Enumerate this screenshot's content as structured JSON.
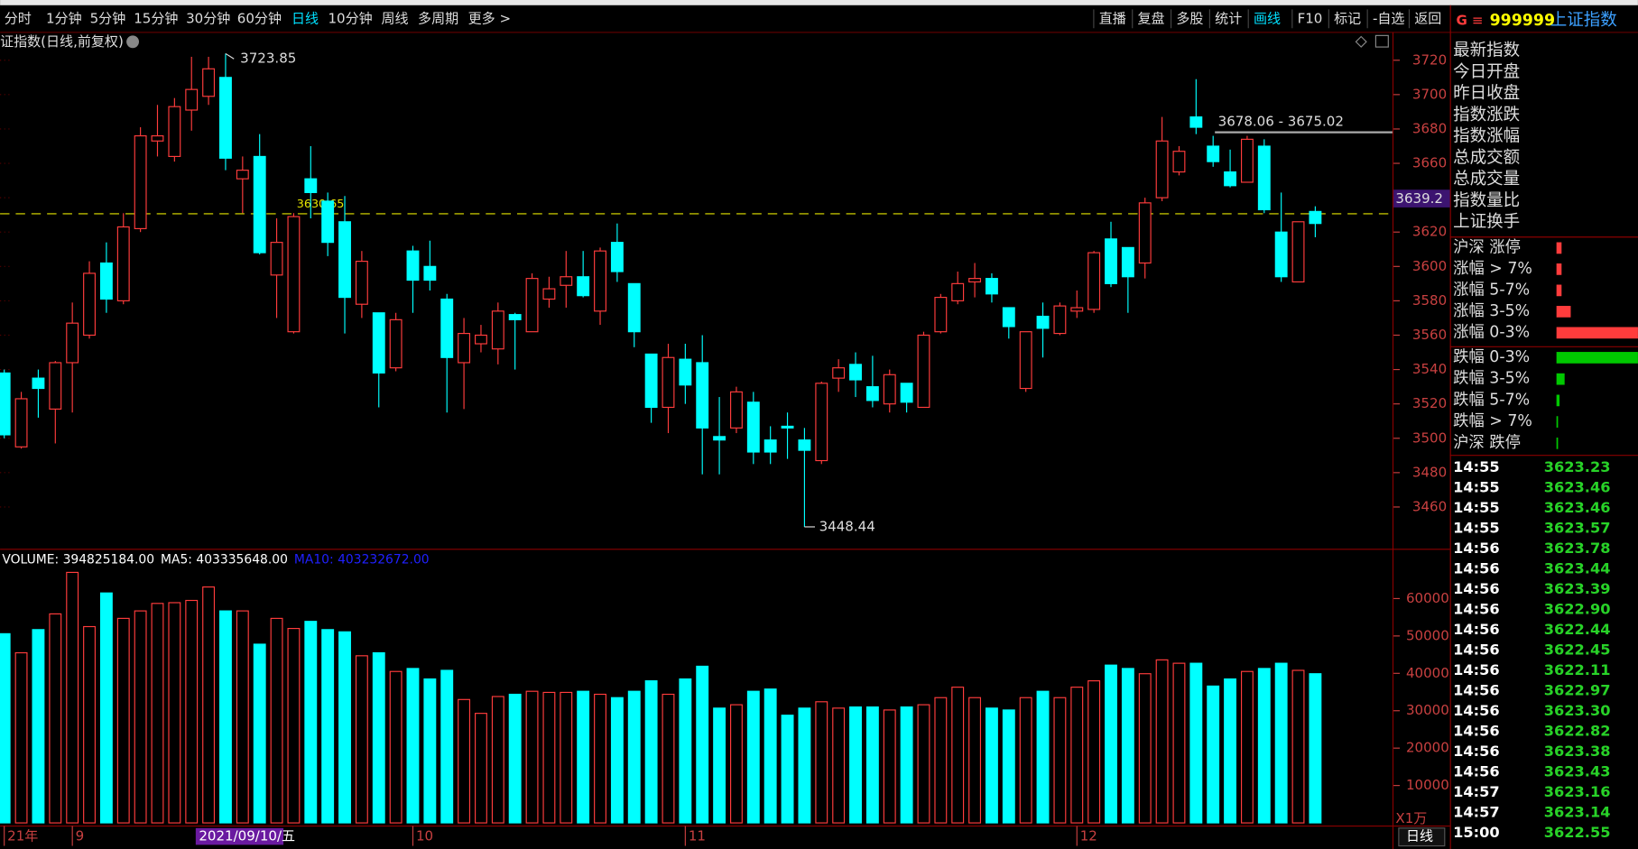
{
  "toolbar": {
    "periods": [
      "分时",
      "1分钟",
      "5分钟",
      "15分钟",
      "30分钟",
      "60分钟",
      "日线",
      "10分钟",
      "周线",
      "多周期",
      "更多 >"
    ],
    "active_period": 6,
    "tools": [
      "直播",
      "复盘",
      "多股",
      "统计",
      "画线",
      "F10",
      "标记",
      "-自选",
      "返回"
    ],
    "active_tool": 4
  },
  "chart_data": [
    {
      "type": "candlestick",
      "title": "证指数(日线,前复权)",
      "categories": [
        "21年",
        null,
        null,
        null,
        "9",
        null,
        null,
        null,
        null,
        null,
        null,
        "2021/09/10/五",
        null,
        null,
        null,
        null,
        null,
        null,
        null,
        null,
        null,
        null,
        null,
        null,
        "10",
        null,
        null,
        null,
        null,
        null,
        null,
        null,
        null,
        null,
        null,
        null,
        null,
        null,
        null,
        null,
        "11",
        null,
        null,
        null,
        null,
        null,
        null,
        null,
        null,
        null,
        null,
        null,
        null,
        null,
        null,
        null,
        null,
        null,
        null,
        null,
        null,
        null,
        null,
        "12",
        null,
        null,
        null,
        null,
        null,
        null,
        null,
        null,
        null,
        null,
        null,
        null,
        null,
        null
      ],
      "open": [
        3538,
        3495,
        3535,
        3517,
        3544,
        3560,
        3602,
        3580,
        3622,
        3673,
        3664,
        3691,
        3699,
        3710,
        3651,
        3664,
        3595,
        3562,
        3651,
        3638,
        3626,
        3578,
        3573,
        3541,
        3609,
        3600,
        3581,
        3544,
        3555,
        3552,
        3572,
        3562,
        3581,
        3589,
        3594,
        3574,
        3614,
        3590,
        3549,
        3518,
        3546,
        3544,
        3501,
        3506,
        3521,
        3499,
        3507,
        3499,
        3487,
        3535,
        3543,
        3530,
        3520,
        3532,
        3518,
        3562,
        3580,
        3591,
        3593,
        3576,
        3529,
        3571,
        3561,
        3574,
        3575,
        3616,
        3611,
        3602,
        3640,
        3655,
        3687,
        3670,
        3655,
        3649,
        3670,
        3620,
        3591,
        3632
      ],
      "high": [
        3540,
        3527,
        3540,
        3545,
        3579,
        3603,
        3614,
        3631,
        3681,
        3694,
        3698,
        3722,
        3722,
        3723.85,
        3664,
        3677,
        3628,
        3631,
        3670,
        3643,
        3641,
        3609,
        3573,
        3573,
        3612,
        3615,
        3584,
        3570,
        3566,
        3579,
        3573,
        3596,
        3594,
        3609,
        3609,
        3611,
        3625,
        3590,
        3549,
        3555,
        3555,
        3560,
        3524,
        3530,
        3527,
        3507,
        3515,
        3506,
        3533,
        3546,
        3550,
        3548,
        3540,
        3532,
        3562,
        3584,
        3597,
        3602,
        3596,
        3576,
        3562,
        3579,
        3579,
        3586,
        3609,
        3626,
        3611,
        3640,
        3687,
        3670,
        3709,
        3676,
        3668,
        3676,
        3674,
        3643,
        3626,
        3635
      ],
      "low": [
        3500,
        3494,
        3512,
        3497,
        3515,
        3558,
        3573,
        3578,
        3620,
        3664,
        3661,
        3679,
        3694,
        3656,
        3631,
        3607,
        3570,
        3561,
        3628,
        3606,
        3561,
        3570,
        3518,
        3539,
        3573,
        3586,
        3515,
        3517,
        3550,
        3543,
        3540,
        3562,
        3576,
        3576,
        3582,
        3566,
        3591,
        3553,
        3509,
        3503,
        3520,
        3479,
        3479,
        3503,
        3485,
        3485,
        3488,
        3448.44,
        3485,
        3527,
        3524,
        3518,
        3515,
        3515,
        3518,
        3561,
        3578,
        3582,
        3579,
        3558,
        3527,
        3547,
        3560,
        3570,
        3573,
        3588,
        3573,
        3593,
        3638,
        3653,
        3677,
        3658,
        3646,
        3649,
        3631,
        3591,
        3591,
        3617
      ],
      "close": [
        3502,
        3523,
        3529,
        3544,
        3567,
        3596,
        3581,
        3623,
        3676,
        3676,
        3693,
        3703,
        3715,
        3663,
        3656,
        3608,
        3614,
        3629,
        3643,
        3614,
        3582,
        3603,
        3538,
        3569,
        3592,
        3592,
        3547,
        3561,
        3560,
        3574,
        3569,
        3593,
        3587,
        3594,
        3583,
        3609,
        3597,
        3562,
        3518,
        3547,
        3531,
        3506,
        3499,
        3527,
        3492,
        3492,
        3506,
        3493,
        3532,
        3541,
        3534,
        3522,
        3537,
        3521,
        3560,
        3582,
        3590,
        3593,
        3584,
        3565,
        3562,
        3564,
        3577,
        3576,
        3608,
        3590,
        3594,
        3637,
        3673,
        3667,
        3681,
        3661,
        3647,
        3674,
        3633,
        3594,
        3626,
        3625
      ],
      "up_color": "#ff3c3c",
      "down_color": "#00ffff",
      "ylim": [
        3436,
        3735
      ],
      "yticks": [
        3460,
        3480,
        3500,
        3520,
        3540,
        3560,
        3580,
        3600,
        3620,
        3640,
        3660,
        3680,
        3700,
        3720
      ],
      "reference_line": 3630.65,
      "reference_color": "#e6e600",
      "range_line": {
        "label": "3678.06 - 3675.02",
        "value": 3678.06
      },
      "cursor_price": 3639.2
    },
    {
      "type": "bar",
      "legend": [
        {
          "text": "VOLUME: 394825184.00",
          "color": "#ffffff"
        },
        {
          "text": "MA5: 403335648.00",
          "color": "#ffffff"
        },
        {
          "text": "MA10: 403232672.00",
          "color": "#2020ff"
        }
      ],
      "values": [
        50600,
        45500,
        51700,
        55900,
        67000,
        52500,
        61500,
        54700,
        56700,
        58700,
        58900,
        59500,
        63100,
        56700,
        56700,
        47800,
        54700,
        52000,
        53900,
        51700,
        51100,
        44700,
        45500,
        40500,
        41300,
        38500,
        40800,
        33000,
        29300,
        33800,
        34400,
        35200,
        34900,
        34900,
        35200,
        34400,
        33500,
        35200,
        38000,
        34400,
        38500,
        41900,
        30700,
        31600,
        35200,
        35800,
        28800,
        30700,
        32400,
        30700,
        31000,
        31000,
        30200,
        31000,
        31600,
        33500,
        36300,
        33500,
        30700,
        30200,
        33500,
        35200,
        33500,
        36300,
        38000,
        42200,
        41300,
        39900,
        43600,
        42700,
        42700,
        36600,
        38500,
        40500,
        41300,
        42700,
        40800,
        39900
      ],
      "ylim": [
        0,
        72900
      ],
      "yticks": [
        10000,
        20000,
        30000,
        40000,
        50000,
        60000
      ],
      "unit": "X1万",
      "period_label": "日线"
    }
  ],
  "quote": {
    "prefix": "G",
    "menu": "≡",
    "code": "999999",
    "name": "上证指数",
    "fields": [
      "最新指数",
      "今日开盘",
      "昨日收盘",
      "指数涨跌",
      "指数涨幅",
      "总成交额",
      "总成交量",
      "指数量比",
      "上证换手"
    ],
    "breadth": [
      {
        "label": "沪深 涨停",
        "value": 5,
        "color": "#ff3c3c"
      },
      {
        "label": "涨幅 > 7%",
        "value": 5,
        "color": "#ff3c3c"
      },
      {
        "label": "涨幅 5-7%",
        "value": 5,
        "color": "#ff3c3c"
      },
      {
        "label": "涨幅 3-5%",
        "value": 14,
        "color": "#ff3c3c"
      },
      {
        "label": "涨幅 0-3%",
        "value": 80,
        "color": "#ff3c3c"
      },
      {
        "label": "跌幅 0-3%",
        "value": 80,
        "color": "#00c800"
      },
      {
        "label": "跌幅 3-5%",
        "value": 8,
        "color": "#00c800"
      },
      {
        "label": "跌幅 5-7%",
        "value": 3,
        "color": "#00c800"
      },
      {
        "label": "跌幅 > 7%",
        "value": 1,
        "color": "#00c800"
      },
      {
        "label": "沪深 跌停",
        "value": 1,
        "color": "#00c800"
      }
    ],
    "ticks": [
      [
        "14:55",
        "3623.23"
      ],
      [
        "14:55",
        "3623.46"
      ],
      [
        "14:55",
        "3623.46"
      ],
      [
        "14:55",
        "3623.57"
      ],
      [
        "14:56",
        "3623.78"
      ],
      [
        "14:56",
        "3623.44"
      ],
      [
        "14:56",
        "3623.39"
      ],
      [
        "14:56",
        "3622.90"
      ],
      [
        "14:56",
        "3622.44"
      ],
      [
        "14:56",
        "3622.45"
      ],
      [
        "14:56",
        "3622.11"
      ],
      [
        "14:56",
        "3622.97"
      ],
      [
        "14:56",
        "3623.30"
      ],
      [
        "14:56",
        "3622.82"
      ],
      [
        "14:56",
        "3623.38"
      ],
      [
        "14:56",
        "3623.43"
      ],
      [
        "14:57",
        "3623.16"
      ],
      [
        "14:57",
        "3623.14"
      ],
      [
        "15:00",
        "3622.55"
      ]
    ]
  }
}
